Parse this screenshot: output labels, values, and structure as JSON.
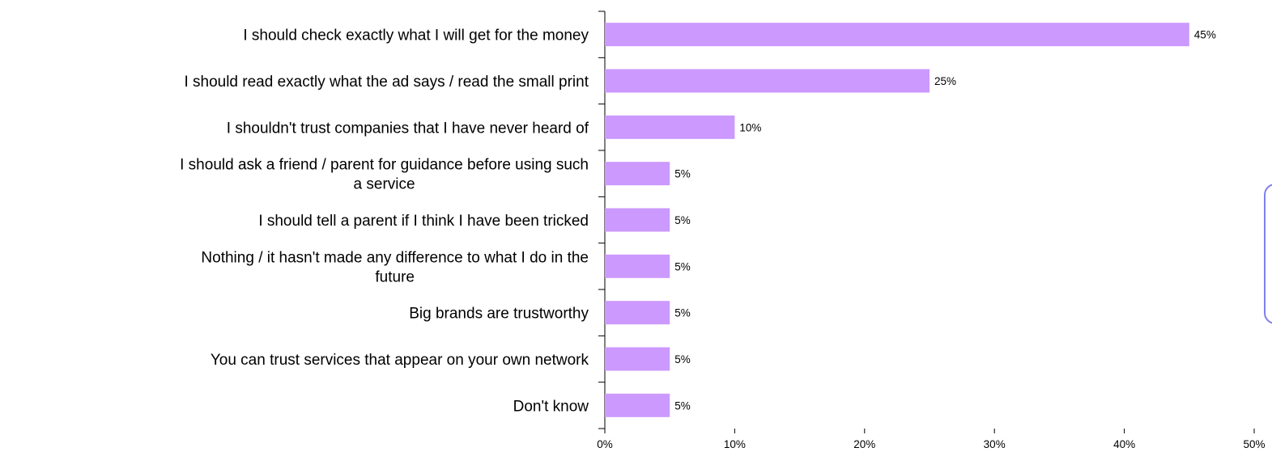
{
  "chart_data": {
    "type": "bar",
    "orientation": "horizontal",
    "categories": [
      "I should check exactly what I will get for the money",
      "I should read exactly what the ad says / read the small print",
      "I shouldn't trust companies that I have never heard of",
      "I should ask a friend / parent for guidance before using such a service",
      "I should tell a parent if I think I have been tricked",
      "Nothing / it hasn't made any difference to what I do in the future",
      "Big brands are trustworthy",
      "You can trust services that appear on your own network",
      "Don't know"
    ],
    "values": [
      45,
      25,
      10,
      5,
      5,
      5,
      5,
      5,
      5
    ],
    "value_labels": [
      "45%",
      "25%",
      "10%",
      "5%",
      "5%",
      "5%",
      "5%",
      "5%",
      "5%"
    ],
    "xlim": [
      0,
      50
    ],
    "x_ticks": [
      "0%",
      "10%",
      "20%",
      "30%",
      "40%",
      "50%"
    ],
    "bar_color": "#cc99ff",
    "grid": false,
    "title": "",
    "xlabel": "",
    "ylabel": ""
  }
}
